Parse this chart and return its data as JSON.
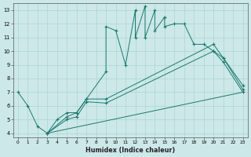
{
  "xlabel": "Humidex (Indice chaleur)",
  "xlim": [
    -0.5,
    23.5
  ],
  "ylim": [
    3.7,
    13.5
  ],
  "xticks": [
    0,
    1,
    2,
    3,
    4,
    5,
    6,
    7,
    8,
    9,
    10,
    11,
    12,
    13,
    14,
    15,
    16,
    17,
    18,
    19,
    20,
    21,
    22,
    23
  ],
  "yticks": [
    4,
    5,
    6,
    7,
    8,
    9,
    10,
    11,
    12,
    13
  ],
  "bg_color": "#cce8e8",
  "line_color": "#1a7a6e",
  "series_zigzag": {
    "x": [
      0,
      1,
      2,
      3,
      4,
      5,
      6,
      7,
      9,
      9,
      10,
      11,
      12,
      12,
      13,
      13,
      14,
      14,
      15,
      15,
      16,
      17,
      18,
      19,
      20,
      21,
      23
    ],
    "y": [
      7,
      6,
      4.5,
      4,
      5,
      5.5,
      5.5,
      6.5,
      8.5,
      11.8,
      11.5,
      9,
      13,
      11,
      13.3,
      11,
      13,
      11.5,
      12.5,
      11.8,
      12,
      12,
      10.5,
      10.5,
      10,
      9.5,
      7.5
    ]
  },
  "series_upper": {
    "x": [
      3,
      5,
      6,
      7,
      9,
      20,
      21,
      23
    ],
    "y": [
      4,
      5.2,
      5.5,
      6.5,
      6.5,
      10.5,
      9.5,
      7.2
    ]
  },
  "series_lower": {
    "x": [
      3,
      5,
      6,
      7,
      9,
      20,
      21,
      23
    ],
    "y": [
      4,
      5.0,
      5.2,
      6.3,
      6.2,
      10.0,
      9.2,
      7.0
    ]
  },
  "series_bottom": {
    "x": [
      3,
      23
    ],
    "y": [
      4,
      7
    ]
  }
}
